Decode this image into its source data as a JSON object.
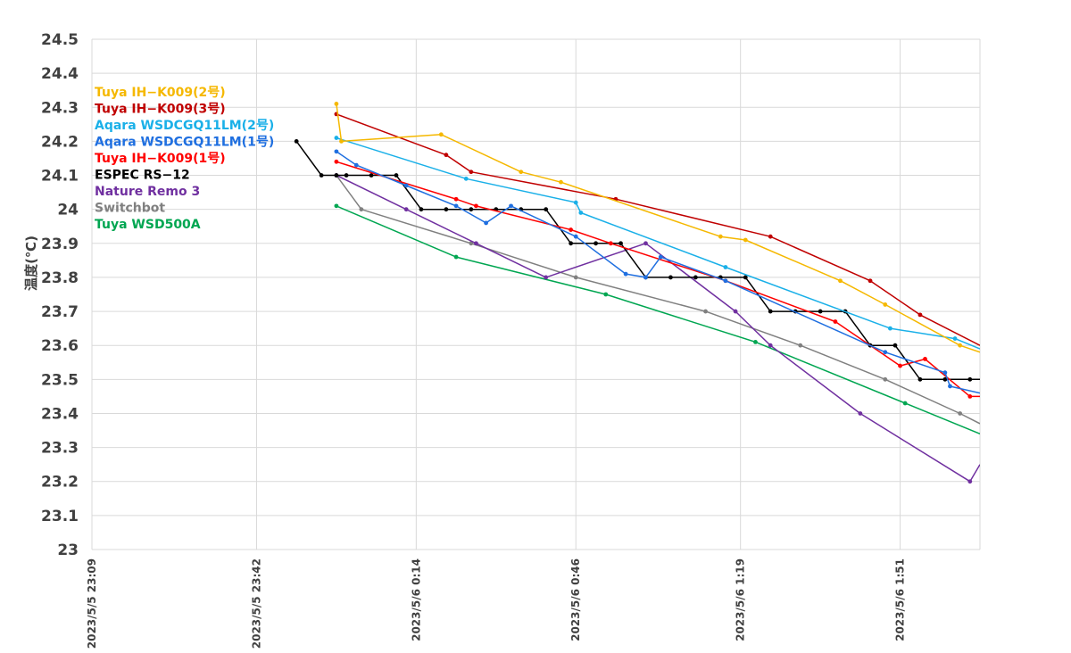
{
  "chart_data": {
    "type": "line",
    "title": "",
    "xlabel": "",
    "ylabel": "温度(℃)",
    "ylim": [
      23,
      24.5
    ],
    "ytick_step": 0.1,
    "yticks": [
      "23",
      "23.1",
      "23.2",
      "23.3",
      "23.4",
      "23.5",
      "23.6",
      "23.7",
      "23.8",
      "23.9",
      "24",
      "24.1",
      "24.2",
      "24.3",
      "24.4",
      "24.5"
    ],
    "xlim": [
      "2023-05-05 23:09",
      "2023-05-06 02:07"
    ],
    "xticks": [
      {
        "time": "2023-05-05 23:09",
        "label": "2023/5/5 23:09"
      },
      {
        "time": "2023-05-05 23:42",
        "label": "2023/5/5 23:42"
      },
      {
        "time": "2023-05-06 00:14",
        "label": "2023/5/6 0:14"
      },
      {
        "time": "2023-05-06 00:46",
        "label": "2023/5/6 0:46"
      },
      {
        "time": "2023-05-06 01:19",
        "label": "2023/5/6 1:19"
      },
      {
        "time": "2023-05-06 01:51",
        "label": "2023/5/6 1:51"
      }
    ],
    "grid": true,
    "legend_position": "top-left",
    "series": [
      {
        "name": "Tuya IH−K009(2号)",
        "color": "#f5b800",
        "points": [
          [
            "2023-05-05 23:58",
            24.31
          ],
          [
            "2023-05-05 23:59",
            24.2
          ],
          [
            "2023-05-06 00:19",
            24.22
          ],
          [
            "2023-05-06 00:35",
            24.11
          ],
          [
            "2023-05-06 00:43",
            24.08
          ],
          [
            "2023-05-06 01:15",
            23.92
          ],
          [
            "2023-05-06 01:20",
            23.91
          ],
          [
            "2023-05-06 01:39",
            23.79
          ],
          [
            "2023-05-06 01:48",
            23.72
          ],
          [
            "2023-05-06 02:03",
            23.6
          ],
          [
            "2023-05-06 02:07",
            23.58
          ]
        ]
      },
      {
        "name": "Tuya IH−K009(3号)",
        "color": "#c00000",
        "points": [
          [
            "2023-05-05 23:58",
            24.28
          ],
          [
            "2023-05-06 00:20",
            24.16
          ],
          [
            "2023-05-06 00:25",
            24.11
          ],
          [
            "2023-05-06 00:54",
            24.03
          ],
          [
            "2023-05-06 01:25",
            23.92
          ],
          [
            "2023-05-06 01:45",
            23.79
          ],
          [
            "2023-05-06 01:55",
            23.69
          ],
          [
            "2023-05-06 02:07",
            23.6
          ]
        ]
      },
      {
        "name": "Aqara WSDCGQ11LM(2号)",
        "color": "#1ab0e8",
        "points": [
          [
            "2023-05-05 23:58",
            24.21
          ],
          [
            "2023-05-06 00:24",
            24.09
          ],
          [
            "2023-05-06 00:46",
            24.02
          ],
          [
            "2023-05-06 00:47",
            23.99
          ],
          [
            "2023-05-06 01:16",
            23.83
          ],
          [
            "2023-05-06 01:49",
            23.65
          ],
          [
            "2023-05-06 02:02",
            23.62
          ],
          [
            "2023-05-06 02:07",
            23.59
          ]
        ]
      },
      {
        "name": "Aqara WSDCGQ11LM(1号)",
        "color": "#1f6fe0",
        "points": [
          [
            "2023-05-05 23:58",
            24.17
          ],
          [
            "2023-05-06 00:02",
            24.13
          ],
          [
            "2023-05-06 00:12",
            24.07
          ],
          [
            "2023-05-06 00:22",
            24.01
          ],
          [
            "2023-05-06 00:28",
            23.96
          ],
          [
            "2023-05-06 00:33",
            24.01
          ],
          [
            "2023-05-06 00:46",
            23.92
          ],
          [
            "2023-05-06 00:56",
            23.81
          ],
          [
            "2023-05-06 01:00",
            23.8
          ],
          [
            "2023-05-06 01:03",
            23.86
          ],
          [
            "2023-05-06 01:16",
            23.79
          ],
          [
            "2023-05-06 01:48",
            23.58
          ],
          [
            "2023-05-06 02:00",
            23.52
          ],
          [
            "2023-05-06 02:01",
            23.48
          ],
          [
            "2023-05-06 02:07",
            23.46
          ]
        ]
      },
      {
        "name": "Tuya IH−K009(1号)",
        "color": "#ff0000",
        "points": [
          [
            "2023-05-05 23:58",
            24.14
          ],
          [
            "2023-05-06 00:22",
            24.03
          ],
          [
            "2023-05-06 00:26",
            24.01
          ],
          [
            "2023-05-06 00:45",
            23.94
          ],
          [
            "2023-05-06 00:53",
            23.9
          ],
          [
            "2023-05-06 01:16",
            23.79
          ],
          [
            "2023-05-06 01:38",
            23.67
          ],
          [
            "2023-05-06 01:51",
            23.54
          ],
          [
            "2023-05-06 01:56",
            23.56
          ],
          [
            "2023-05-06 02:05",
            23.45
          ],
          [
            "2023-05-06 02:07",
            23.45
          ]
        ]
      },
      {
        "name": "ESPEC RS−12",
        "color": "#000000",
        "points": [
          [
            "2023-05-05 23:50",
            24.2
          ],
          [
            "2023-05-05 23:55",
            24.1
          ],
          [
            "2023-05-05 23:58",
            24.1
          ],
          [
            "2023-05-06 00:00",
            24.1
          ],
          [
            "2023-05-06 00:05",
            24.1
          ],
          [
            "2023-05-06 00:10",
            24.1
          ],
          [
            "2023-05-06 00:15",
            24.0
          ],
          [
            "2023-05-06 00:20",
            24.0
          ],
          [
            "2023-05-06 00:25",
            24.0
          ],
          [
            "2023-05-06 00:30",
            24.0
          ],
          [
            "2023-05-06 00:35",
            24.0
          ],
          [
            "2023-05-06 00:40",
            24.0
          ],
          [
            "2023-05-06 00:45",
            23.9
          ],
          [
            "2023-05-06 00:50",
            23.9
          ],
          [
            "2023-05-06 00:55",
            23.9
          ],
          [
            "2023-05-06 01:00",
            23.8
          ],
          [
            "2023-05-06 01:05",
            23.8
          ],
          [
            "2023-05-06 01:10",
            23.8
          ],
          [
            "2023-05-06 01:15",
            23.8
          ],
          [
            "2023-05-06 01:20",
            23.8
          ],
          [
            "2023-05-06 01:25",
            23.7
          ],
          [
            "2023-05-06 01:30",
            23.7
          ],
          [
            "2023-05-06 01:35",
            23.7
          ],
          [
            "2023-05-06 01:40",
            23.7
          ],
          [
            "2023-05-06 01:45",
            23.6
          ],
          [
            "2023-05-06 01:50",
            23.6
          ],
          [
            "2023-05-06 01:55",
            23.5
          ],
          [
            "2023-05-06 02:00",
            23.5
          ],
          [
            "2023-05-06 02:05",
            23.5
          ],
          [
            "2023-05-06 02:07",
            23.5
          ]
        ]
      },
      {
        "name": "Nature Remo 3",
        "color": "#7030a0",
        "points": [
          [
            "2023-05-05 23:58",
            24.1
          ],
          [
            "2023-05-06 00:12",
            24.0
          ],
          [
            "2023-05-06 00:26",
            23.9
          ],
          [
            "2023-05-06 00:40",
            23.8
          ],
          [
            "2023-05-06 01:00",
            23.9
          ],
          [
            "2023-05-06 01:18",
            23.7
          ],
          [
            "2023-05-06 01:25",
            23.6
          ],
          [
            "2023-05-06 01:43",
            23.4
          ],
          [
            "2023-05-06 02:05",
            23.2
          ],
          [
            "2023-05-06 02:07",
            23.25
          ]
        ]
      },
      {
        "name": "Switchbot",
        "color": "#808080",
        "points": [
          [
            "2023-05-05 23:58",
            24.1
          ],
          [
            "2023-05-06 00:03",
            24.0
          ],
          [
            "2023-05-06 00:25",
            23.9
          ],
          [
            "2023-05-06 00:46",
            23.8
          ],
          [
            "2023-05-06 01:12",
            23.7
          ],
          [
            "2023-05-06 01:31",
            23.6
          ],
          [
            "2023-05-06 01:48",
            23.5
          ],
          [
            "2023-05-06 02:03",
            23.4
          ],
          [
            "2023-05-06 02:07",
            23.37
          ]
        ]
      },
      {
        "name": "Tuya WSD500A",
        "color": "#00a651",
        "points": [
          [
            "2023-05-05 23:58",
            24.01
          ],
          [
            "2023-05-06 00:22",
            23.86
          ],
          [
            "2023-05-06 00:52",
            23.75
          ],
          [
            "2023-05-06 01:22",
            23.61
          ],
          [
            "2023-05-06 01:52",
            23.43
          ],
          [
            "2023-05-06 02:07",
            23.34
          ]
        ]
      }
    ]
  }
}
